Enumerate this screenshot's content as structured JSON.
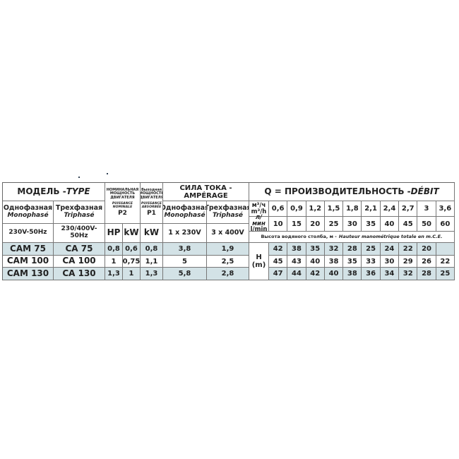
{
  "model": {
    "title": "МОДЕЛЬ - ",
    "title_fr": "TYPE",
    "mono": "Однофазная",
    "mono_fr": "Monophasé",
    "tri": "Трехфазная",
    "tri_fr": "Triphasé",
    "mono_volt": "230V-50Hz",
    "tri_volt": "230/400V-50Hz"
  },
  "p2": {
    "ru": "НОМИНАЛЬНАЯ МОЩНОСТЬ ДВИГАТЕЛЯ",
    "fr": "PUISSANCE NOMINALE",
    "label": "P2",
    "hp": "HP",
    "kw": "kW"
  },
  "p1": {
    "ru": "Выходная МОЩНОСТЬ ДВИГАТЕЛЯ",
    "fr": "PUISSANCE ABSORBÉE",
    "label": "P1",
    "kw": "kW"
  },
  "amp": {
    "title": "СИЛА ТОКА - AMPÉRAGE",
    "mono": "Однофазная",
    "mono_fr": "Monophasé",
    "tri": "Трехфазная",
    "tri_fr": "Triphasé",
    "mono_volt": "1 x 230V",
    "tri_volt": "3 x 400V"
  },
  "flow": {
    "title": "Q = ПРОИЗВОДИТЕЛЬНОСТЬ - ",
    "title_fr": "DÉBIT",
    "unit_m3": "м³/ч",
    "unit_m3_fr": "m³/h",
    "unit_l": "л/мин",
    "unit_l_fr": "l/min",
    "m3h": [
      "0,6",
      "0,9",
      "1,2",
      "1,5",
      "1,8",
      "2,1",
      "2,4",
      "2,7",
      "3",
      "3,6"
    ],
    "lmin": [
      "10",
      "15",
      "20",
      "25",
      "30",
      "35",
      "40",
      "45",
      "50",
      "60"
    ],
    "height_label": "Высота водяного столба, м - ",
    "height_label_fr": "Hauteur manométrique totale en m.C.E.",
    "h_unit": "H",
    "h_unit2": "(m)"
  },
  "rows": [
    {
      "mono": "CAM 75",
      "tri": "CA 75",
      "hp": "0,8",
      "kw": "0,6",
      "p1": "0,8",
      "amp_mono": "3,8",
      "amp_tri": "1,9",
      "h": [
        "42",
        "38",
        "35",
        "32",
        "28",
        "25",
        "24",
        "22",
        "20",
        ""
      ]
    },
    {
      "mono": "CAM 100",
      "tri": "CA 100",
      "hp": "1",
      "kw": "0,75",
      "p1": "1,1",
      "amp_mono": "5",
      "amp_tri": "2,5",
      "h": [
        "45",
        "43",
        "40",
        "38",
        "35",
        "33",
        "30",
        "29",
        "26",
        "22"
      ]
    },
    {
      "mono": "CAM 130",
      "tri": "CA 130",
      "hp": "1,3",
      "kw": "1",
      "p1": "1,3",
      "amp_mono": "5,8",
      "amp_tri": "2,8",
      "h": [
        "47",
        "44",
        "42",
        "40",
        "38",
        "36",
        "34",
        "32",
        "28",
        "25"
      ]
    }
  ],
  "colors": {
    "row_shade": "#d3e2e6",
    "border": "#777777"
  }
}
